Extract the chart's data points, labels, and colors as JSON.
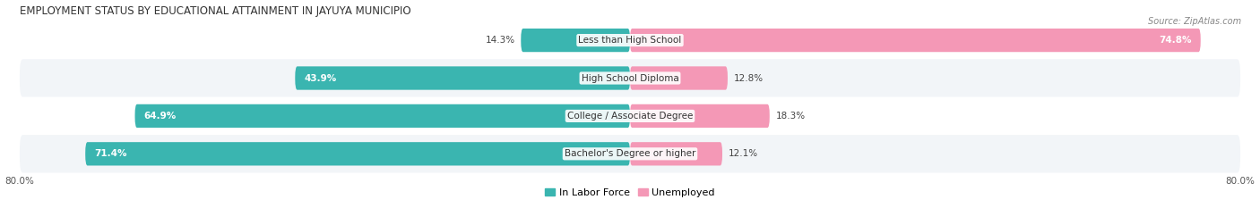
{
  "title": "EMPLOYMENT STATUS BY EDUCATIONAL ATTAINMENT IN JAYUYA MUNICIPIO",
  "source": "Source: ZipAtlas.com",
  "categories": [
    "Less than High School",
    "High School Diploma",
    "College / Associate Degree",
    "Bachelor's Degree or higher"
  ],
  "labor_force": [
    14.3,
    43.9,
    64.9,
    71.4
  ],
  "unemployed": [
    74.8,
    12.8,
    18.3,
    12.1
  ],
  "xlim_left": -80.0,
  "xlim_right": 80.0,
  "x_left_label": "80.0%",
  "x_right_label": "80.0%",
  "color_labor": "#3ab5b0",
  "color_unemployed": "#f498b6",
  "color_bg_row_light": "#f2f5f8",
  "color_bg_row_white": "#ffffff",
  "bar_height": 0.62,
  "legend_labor": "In Labor Force",
  "legend_unemployed": "Unemployed",
  "title_fontsize": 8.5,
  "label_fontsize": 7.5,
  "value_fontsize": 7.5,
  "source_fontsize": 7.0,
  "legend_fontsize": 8.0
}
